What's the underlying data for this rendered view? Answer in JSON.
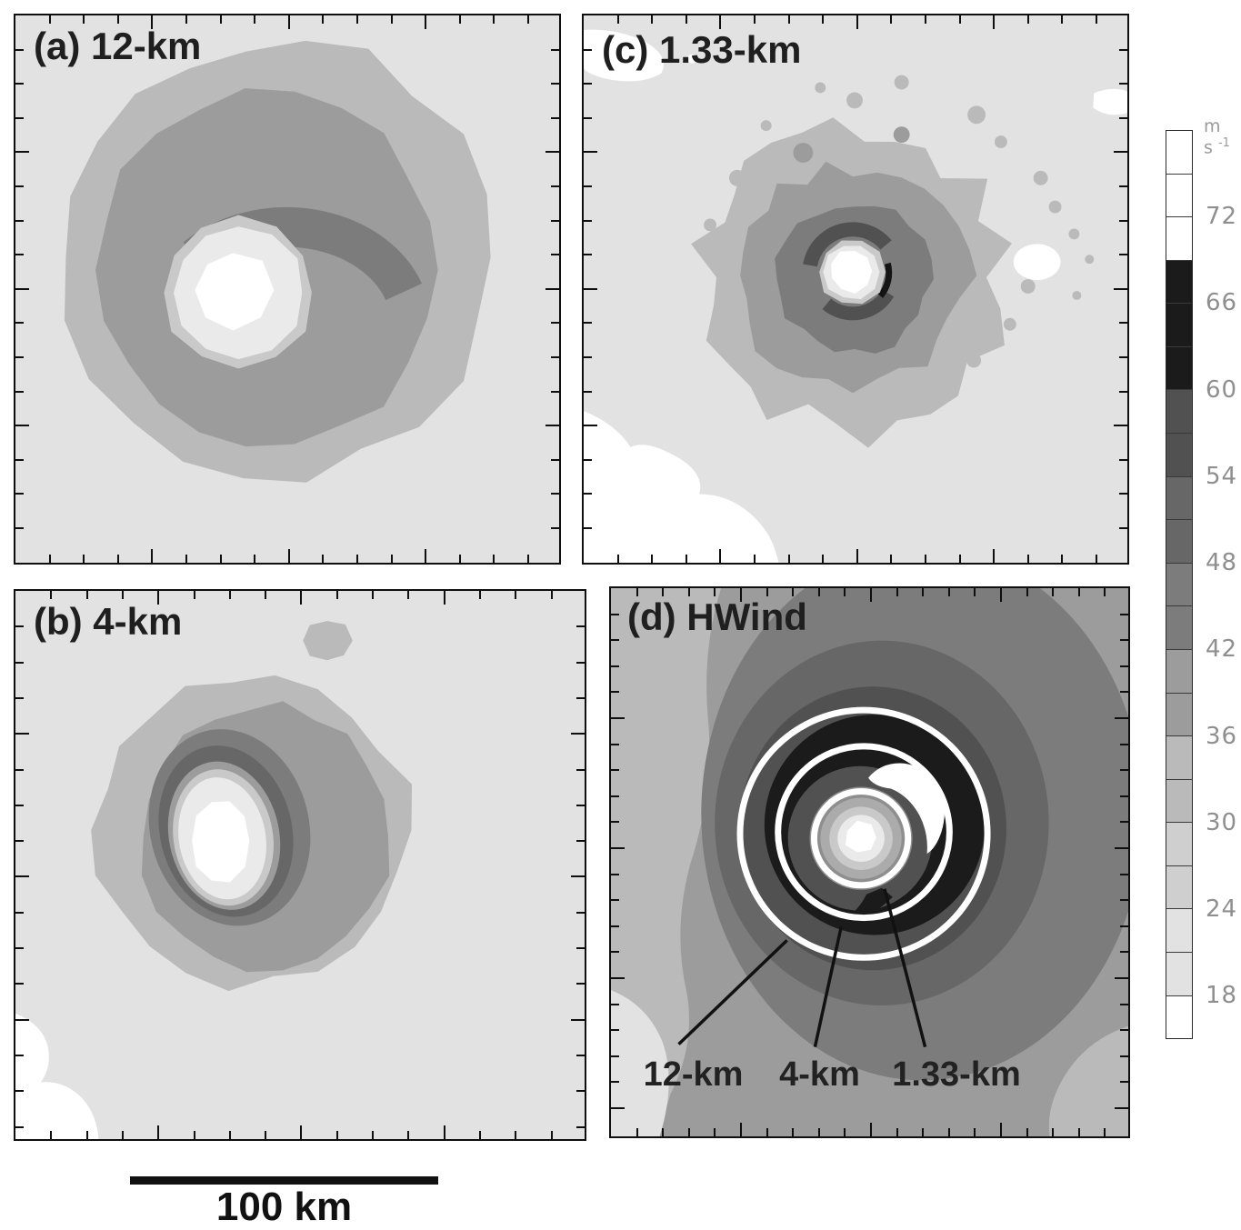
{
  "figure": {
    "panels": [
      {
        "id": "a",
        "label": "(a) 12-km"
      },
      {
        "id": "b",
        "label": "(b) 4-km"
      },
      {
        "id": "c",
        "label": "(c) 1.33-km"
      },
      {
        "id": "d",
        "label": "(d) HWind"
      }
    ],
    "hwind_annotations": [
      {
        "label": "12-km"
      },
      {
        "label": "4-km"
      },
      {
        "label": "1.33-km"
      }
    ],
    "scale_bar": {
      "label": "100 km"
    },
    "colorbar": {
      "units_base": "m s",
      "units_exponent": "-1",
      "tick_labels": [
        "72",
        "66",
        "60",
        "54",
        "48",
        "42",
        "36",
        "30",
        "24",
        "18"
      ]
    },
    "colors": {
      "white": "#ffffff",
      "b18": "#e2e2e2",
      "b24": "#cfcfcf",
      "ring24": "#c9c9c9",
      "b30": "#bababa",
      "b36": "#9c9c9c",
      "b42": "#7c7c7c",
      "b48": "#676767",
      "b54": "#515151",
      "b60": "#1b1b1b",
      "eye": "#eaeaea",
      "ink": "#111111"
    }
  },
  "chart_data": {
    "type": "heatmap",
    "subtype": "filled-contour-wind-speed-maps",
    "title": "Surface wind speed: model resolutions (a) 12-km, (b) 4-km, (c) 1.33-km vs (d) HWind analysis",
    "units": "m s^-1",
    "contour_interval_ms": 3,
    "scale_bar_km": 100,
    "colorbar": {
      "orientation": "vertical-right",
      "value_range": [
        15,
        78
      ],
      "labeled_ticks": [
        72,
        66,
        60,
        54,
        48,
        42,
        36,
        30,
        24,
        18
      ],
      "bands": [
        {
          "range": "<18",
          "color": "#ffffff"
        },
        {
          "range": "18-24",
          "color": "#e2e2e2"
        },
        {
          "range": "24-30",
          "color": "#cfcfcf"
        },
        {
          "range": "30-36",
          "color": "#bababa"
        },
        {
          "range": "36-42",
          "color": "#9c9c9c"
        },
        {
          "range": "42-48",
          "color": "#7c7c7c"
        },
        {
          "range": "48-54",
          "color": "#676767"
        },
        {
          "range": "54-60",
          "color": "#515151"
        },
        {
          "range": "60-69",
          "color": "#1b1b1b"
        },
        {
          "range": ">69",
          "color": "#ffffff"
        }
      ],
      "cells_top_to_bottom": [
        "#ffffff",
        "#ffffff",
        "#ffffff",
        "#1b1b1b",
        "#1b1b1b",
        "#1b1b1b",
        "#515151",
        "#515151",
        "#676767",
        "#676767",
        "#7c7c7c",
        "#7c7c7c",
        "#9c9c9c",
        "#9c9c9c",
        "#bababa",
        "#bababa",
        "#cfcfcf",
        "#cfcfcf",
        "#e2e2e2",
        "#e2e2e2",
        "#ffffff"
      ]
    },
    "panels": [
      {
        "label": "(a) 12-km",
        "max_band_ms": "42-48",
        "structure": "broad smooth annular wind field ~170 km diameter; 42-48 crescent arcs north of eye; calm white eye (<18) ~25 km across with 18-24 moat"
      },
      {
        "label": "(b) 4-km",
        "max_band_ms": "48-54",
        "structure": "compact storm, tilted elliptical 42-54 eyewall ring; white calm eye; weak-wind (<18) patch at lower-left corner; small 30-36 speck north"
      },
      {
        "label": "(c) 1.33-km",
        "max_band_ms": "60-66",
        "structure": "small ragged storm with many convective specks; broken 54-60 arcs and a thin >60 filament around a tiny white eye; <18 patches at panel corners"
      },
      {
        "label": "(d) HWind",
        "max_band_ms": ">69",
        "structure": "observed analysis: winds >60 (black annulus) with >69 white patch NE of eye; concentric light rings into calm eye; weakest winds SW of storm"
      }
    ],
    "hwind_rmw_circles": [
      {
        "label": "12-km",
        "approx_radius_km": 40
      },
      {
        "label": "4-km",
        "approx_radius_km": 28
      },
      {
        "label": "1.33-km",
        "approx_radius_km": 15
      }
    ]
  }
}
